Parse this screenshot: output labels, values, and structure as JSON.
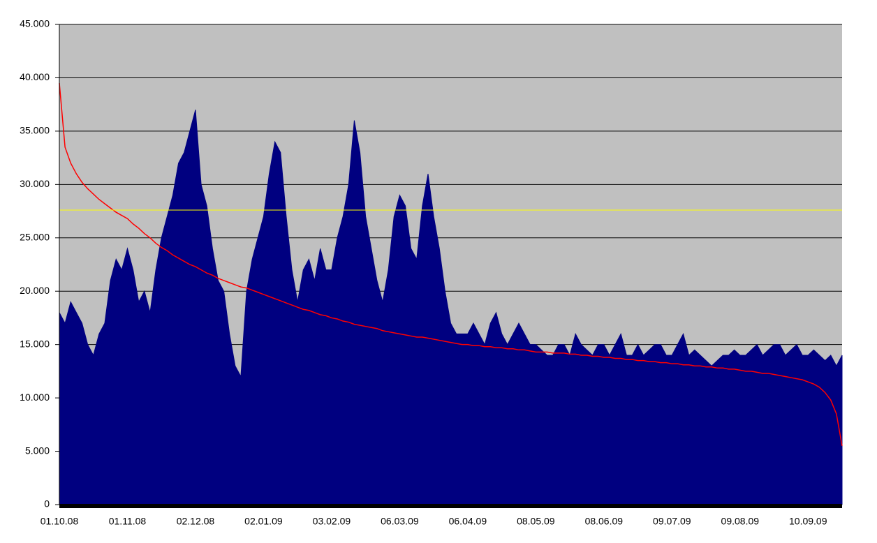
{
  "chart_data": {
    "type": "area",
    "categories": [
      "01.10.08",
      null,
      null,
      null,
      null,
      null,
      null,
      null,
      null,
      null,
      null,
      null,
      "01.11.08",
      null,
      null,
      null,
      null,
      null,
      null,
      null,
      null,
      null,
      null,
      null,
      "02.12.08",
      null,
      null,
      null,
      null,
      null,
      null,
      null,
      null,
      null,
      null,
      null,
      "02.01.09",
      null,
      null,
      null,
      null,
      null,
      null,
      null,
      null,
      null,
      null,
      null,
      "03.02.09",
      null,
      null,
      null,
      null,
      null,
      null,
      null,
      null,
      null,
      null,
      null,
      "06.03.09",
      null,
      null,
      null,
      null,
      null,
      null,
      null,
      null,
      null,
      null,
      null,
      "06.04.09",
      null,
      null,
      null,
      null,
      null,
      null,
      null,
      null,
      null,
      null,
      null,
      "08.05.09",
      null,
      null,
      null,
      null,
      null,
      null,
      null,
      null,
      null,
      null,
      null,
      "08.06.09",
      null,
      null,
      null,
      null,
      null,
      null,
      null,
      null,
      null,
      null,
      null,
      "09.07.09",
      null,
      null,
      null,
      null,
      null,
      null,
      null,
      null,
      null,
      null,
      null,
      "09.08.09",
      null,
      null,
      null,
      null,
      null,
      null,
      null,
      null,
      null,
      null,
      null,
      "10.09.09",
      null,
      null,
      null,
      null,
      null,
      null
    ],
    "series": [
      {
        "type": "area",
        "color": "#000080",
        "values": [
          18000,
          17000,
          19000,
          18000,
          17000,
          15000,
          14000,
          16000,
          17000,
          21000,
          23000,
          22000,
          24000,
          22000,
          19000,
          20000,
          18000,
          22000,
          25000,
          27000,
          29000,
          32000,
          33000,
          35000,
          37000,
          30000,
          28000,
          24000,
          21000,
          20000,
          16000,
          13000,
          12000,
          20000,
          23000,
          25000,
          27000,
          31000,
          34000,
          33000,
          27000,
          22000,
          19000,
          22000,
          23000,
          21000,
          24000,
          22000,
          22000,
          25000,
          27000,
          30000,
          36000,
          33000,
          27000,
          24000,
          21000,
          19000,
          22000,
          27000,
          29000,
          28000,
          24000,
          23000,
          28000,
          31000,
          27000,
          24000,
          20000,
          17000,
          16000,
          16000,
          16000,
          17000,
          16000,
          15000,
          17000,
          18000,
          16000,
          15000,
          16000,
          17000,
          16000,
          15000,
          15000,
          14500,
          14000,
          14000,
          15000,
          15000,
          14000,
          16000,
          15000,
          14500,
          14000,
          15000,
          15000,
          14000,
          15000,
          16000,
          14000,
          14000,
          15000,
          14000,
          14500,
          15000,
          15000,
          14000,
          14000,
          15000,
          16000,
          14000,
          14500,
          14000,
          13500,
          13000,
          13500,
          14000,
          14000,
          14500,
          14000,
          14000,
          14500,
          15000,
          14000,
          14500,
          15000,
          15000,
          14000,
          14500,
          15000,
          14000,
          14000,
          14500,
          14000,
          13500,
          14000,
          13000,
          14000
        ]
      },
      {
        "type": "line",
        "color": "#ff0000",
        "values": [
          39500,
          33500,
          32000,
          31000,
          30200,
          29600,
          29100,
          28600,
          28200,
          27800,
          27400,
          27100,
          26800,
          26300,
          25900,
          25400,
          25000,
          24500,
          24100,
          23800,
          23400,
          23100,
          22800,
          22500,
          22300,
          22000,
          21700,
          21500,
          21200,
          21000,
          20800,
          20600,
          20400,
          20300,
          20100,
          19900,
          19700,
          19500,
          19300,
          19100,
          18900,
          18700,
          18500,
          18300,
          18200,
          18000,
          17800,
          17700,
          17500,
          17400,
          17200,
          17100,
          16900,
          16800,
          16700,
          16600,
          16500,
          16300,
          16200,
          16100,
          16000,
          15900,
          15800,
          15700,
          15700,
          15600,
          15500,
          15400,
          15300,
          15200,
          15100,
          15000,
          15000,
          14900,
          14900,
          14800,
          14800,
          14700,
          14700,
          14600,
          14600,
          14500,
          14500,
          14400,
          14300,
          14300,
          14300,
          14200,
          14200,
          14200,
          14100,
          14100,
          14000,
          14000,
          13900,
          13900,
          13800,
          13800,
          13700,
          13700,
          13600,
          13600,
          13500,
          13500,
          13400,
          13400,
          13300,
          13300,
          13200,
          13200,
          13100,
          13100,
          13000,
          13000,
          12900,
          12900,
          12800,
          12800,
          12700,
          12700,
          12600,
          12500,
          12500,
          12400,
          12300,
          12300,
          12200,
          12100,
          12000,
          11900,
          11800,
          11700,
          11500,
          11300,
          11000,
          10500,
          9800,
          8500,
          5500
        ]
      }
    ],
    "reference_lines": [
      {
        "value": 27600,
        "color": "#ffff00"
      }
    ],
    "ylim": [
      0,
      45000
    ],
    "yticks": [
      0,
      {
        "value": 5000,
        "label": "5.000"
      },
      {
        "value": 10000,
        "label": "10.000"
      },
      {
        "value": 15000,
        "label": "15.000"
      },
      {
        "value": 20000,
        "label": "20.000"
      },
      {
        "value": 25000,
        "label": "25.000"
      },
      {
        "value": 30000,
        "label": "30.000"
      },
      {
        "value": 35000,
        "label": "35.000"
      },
      {
        "value": 40000,
        "label": "40.000"
      },
      {
        "value": 45000,
        "label": "45.000"
      }
    ],
    "grid": true,
    "background": "#c0c0c0"
  }
}
